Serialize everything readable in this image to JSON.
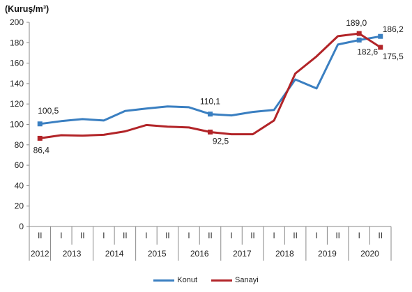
{
  "unit_label": "(Kuruş/m³)",
  "chart_data": {
    "type": "line",
    "title": "",
    "xlabel": "",
    "ylabel": "(Kuruş/m³)",
    "ylim": [
      0,
      200
    ],
    "yticks": [
      0,
      20,
      40,
      60,
      80,
      100,
      120,
      140,
      160,
      180,
      200
    ],
    "grid": false,
    "legend_position": "bottom",
    "categories": [
      "II",
      "I",
      "II",
      "I",
      "II",
      "I",
      "II",
      "I",
      "II",
      "I",
      "II",
      "I",
      "II",
      "I",
      "II",
      "I",
      "II"
    ],
    "years": [
      {
        "label": "2012",
        "span": 1
      },
      {
        "label": "2013",
        "span": 2
      },
      {
        "label": "2014",
        "span": 2
      },
      {
        "label": "2015",
        "span": 2
      },
      {
        "label": "2016",
        "span": 2
      },
      {
        "label": "2017",
        "span": 2
      },
      {
        "label": "2018",
        "span": 2
      },
      {
        "label": "2019",
        "span": 2
      },
      {
        "label": "2020",
        "span": 2
      }
    ],
    "series": [
      {
        "name": "Konut",
        "color": "#3a7fc1",
        "values": [
          100.5,
          103.2,
          105.2,
          103.8,
          113.2,
          115.5,
          117.6,
          116.8,
          110.1,
          108.8,
          112.2,
          114.2,
          144.0,
          135.2,
          178.2,
          182.6,
          186.2
        ]
      },
      {
        "name": "Sanayi",
        "color": "#b22428",
        "values": [
          86.4,
          89.4,
          89.0,
          89.8,
          93.2,
          99.4,
          97.8,
          97.0,
          92.5,
          90.4,
          90.4,
          103.8,
          149.8,
          166.6,
          186.4,
          189.0,
          175.5
        ]
      }
    ],
    "annotations": [
      {
        "series": "Konut",
        "index": 0,
        "text": "100,5",
        "marker": true
      },
      {
        "series": "Sanayi",
        "index": 0,
        "text": "86,4",
        "marker": true
      },
      {
        "series": "Konut",
        "index": 8,
        "text": "110,1",
        "marker": true
      },
      {
        "series": "Sanayi",
        "index": 8,
        "text": "92,5",
        "marker": true
      },
      {
        "series": "Sanayi",
        "index": 15,
        "text": "189,0",
        "marker": true
      },
      {
        "series": "Konut",
        "index": 15,
        "text": "182,6",
        "marker": true
      },
      {
        "series": "Konut",
        "index": 16,
        "text": "186,2",
        "marker": true
      },
      {
        "series": "Sanayi",
        "index": 16,
        "text": "175,5",
        "marker": true
      }
    ]
  },
  "legend": {
    "items": [
      {
        "label": "Konut",
        "color": "#3a7fc1"
      },
      {
        "label": "Sanayi",
        "color": "#b22428"
      }
    ]
  }
}
